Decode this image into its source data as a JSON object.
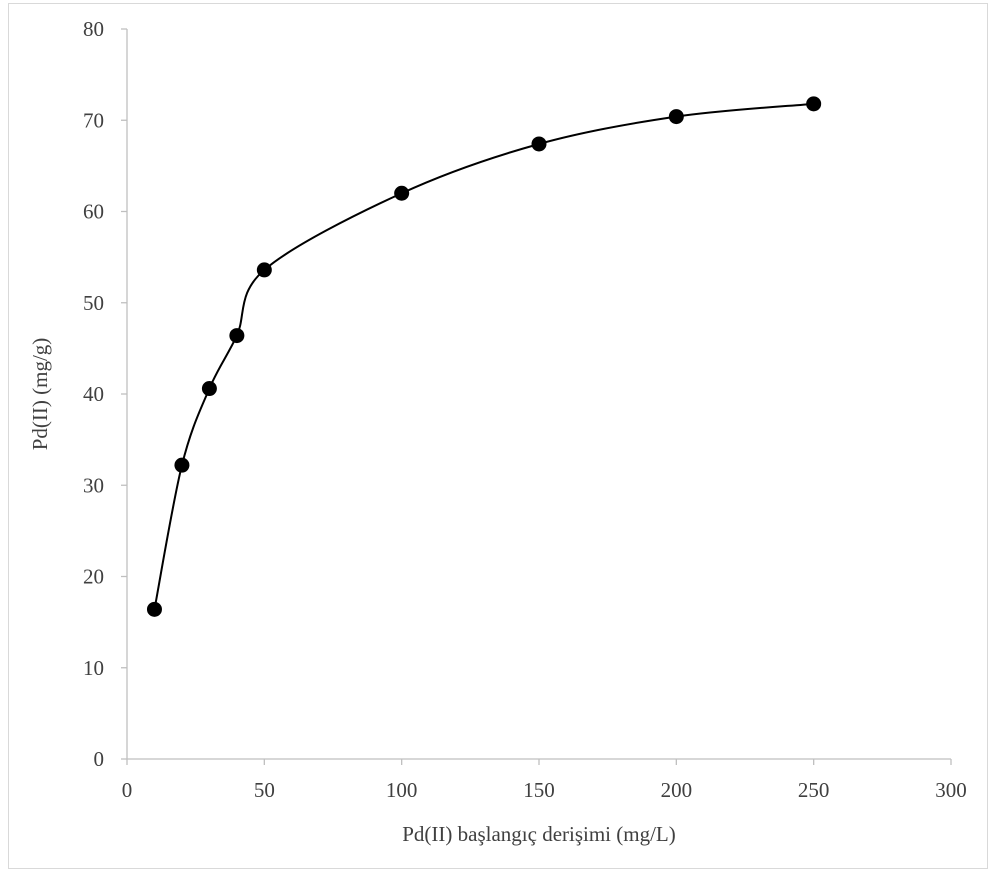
{
  "chart_data": {
    "type": "scatter",
    "title": "",
    "xlabel": "Pd(II) başlangıç derişimi (mg/L)",
    "ylabel": "Pd(II) (mg/g)",
    "xlim": [
      0,
      300
    ],
    "ylim": [
      0,
      80
    ],
    "xticks": [
      "0",
      "50",
      "100",
      "150",
      "200",
      "250",
      "300"
    ],
    "yticks": [
      "0",
      "10",
      "20",
      "30",
      "40",
      "50",
      "60",
      "70",
      "80"
    ],
    "grid": false,
    "legend": "none",
    "smoothed_line": true,
    "series": [
      {
        "x": [
          10,
          20,
          30,
          40,
          50,
          100,
          150,
          200,
          250
        ],
        "y": [
          16.4,
          32.2,
          40.6,
          46.4,
          53.6,
          62.0,
          67.4,
          70.4,
          71.8
        ],
        "marker_color": "#000000",
        "line_color": "#000000"
      }
    ]
  }
}
